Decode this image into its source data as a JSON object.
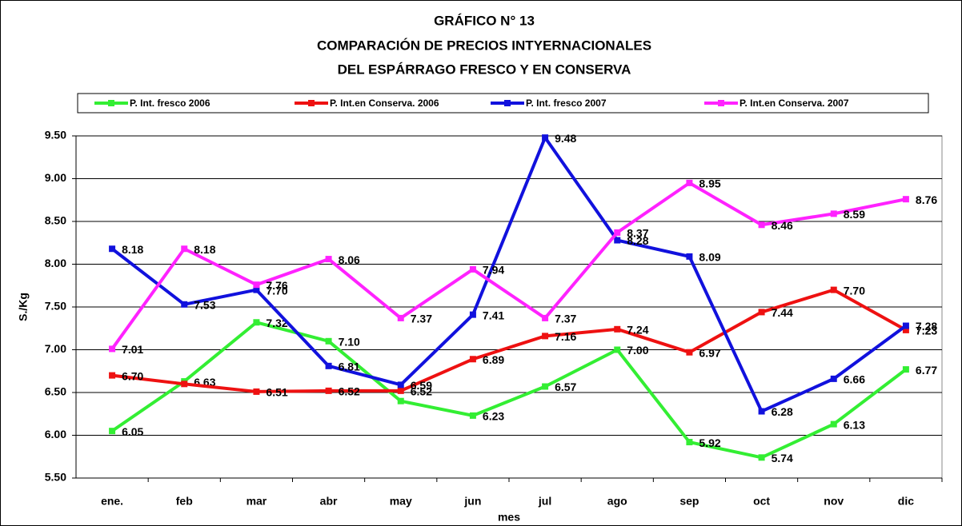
{
  "chart_data": {
    "type": "line",
    "title": [
      "GRÁFICO N° 13",
      "COMPARACIÓN DE PRECIOS INTYERNACIONALES",
      "DEL ESPÁRRAGO FRESCO Y EN CONSERVA"
    ],
    "x_label": "mes",
    "y_label": "S./Kg",
    "categories": [
      "ene.",
      "feb",
      "mar",
      "abr",
      "may",
      "jun",
      "jul",
      "ago",
      "sep",
      "oct",
      "nov",
      "dic"
    ],
    "series": [
      {
        "name": "P. Int.  fresco 2006",
        "color": "#33ee33",
        "values": [
          6.05,
          6.63,
          7.32,
          7.1,
          6.4,
          6.23,
          6.57,
          7.0,
          5.92,
          5.74,
          6.13,
          6.77
        ],
        "value_labels": [
          "6.05",
          "6.63",
          "7.32",
          "7.10",
          null,
          "6.23",
          "6.57",
          "7.00",
          "5.92",
          "5.74",
          "6.13",
          "6.77"
        ]
      },
      {
        "name": "P. Int.en Conserva. 2006",
        "color": "#ee1111",
        "values": [
          6.7,
          6.6,
          6.51,
          6.52,
          6.52,
          6.89,
          7.16,
          7.24,
          6.97,
          7.44,
          7.7,
          7.23
        ],
        "value_labels": [
          "6.70",
          null,
          "6.51",
          "6.52",
          "6.52",
          "6.89",
          "7.16",
          "7.24",
          "6.97",
          "7.44",
          "7.70",
          "7.23"
        ]
      },
      {
        "name": "P. Int.  fresco 2007",
        "color": "#1111dd",
        "values": [
          8.18,
          7.53,
          7.7,
          6.81,
          6.59,
          7.41,
          9.48,
          8.28,
          8.09,
          6.28,
          6.66,
          7.28
        ],
        "value_labels": [
          "8.18",
          "7.53",
          "7.70",
          "6.81",
          "6.59",
          "7.41",
          "9.48",
          "8.28",
          "8.09",
          "6.28",
          "6.66",
          "7.28"
        ]
      },
      {
        "name": "P. Int.en Conserva. 2007",
        "color": "#ff22ff",
        "values": [
          7.01,
          8.18,
          7.76,
          8.06,
          7.37,
          7.94,
          7.37,
          8.37,
          8.95,
          8.46,
          8.59,
          8.76
        ],
        "value_labels": [
          "7.01",
          "8.18",
          "7.76",
          "8.06",
          "7.37",
          "7.94",
          "7.37",
          "8.37",
          "8.95",
          "8.46",
          "8.59",
          "8.76"
        ]
      }
    ],
    "ylim": [
      5.5,
      9.5
    ],
    "yticks": [
      {
        "value": 5.5,
        "label": "5.50"
      },
      {
        "value": 6,
        "label": "6.00"
      },
      {
        "value": 6.5,
        "label": "6.50"
      },
      {
        "value": 7,
        "label": "7.00"
      },
      {
        "value": 7.5,
        "label": "7.50"
      },
      {
        "value": 8,
        "label": "8.00"
      },
      {
        "value": 8.5,
        "label": "8.50"
      },
      {
        "value": 9,
        "label": "9.00"
      },
      {
        "value": 9.5,
        "label": "9.50"
      }
    ],
    "grid": true,
    "legend": "top"
  }
}
